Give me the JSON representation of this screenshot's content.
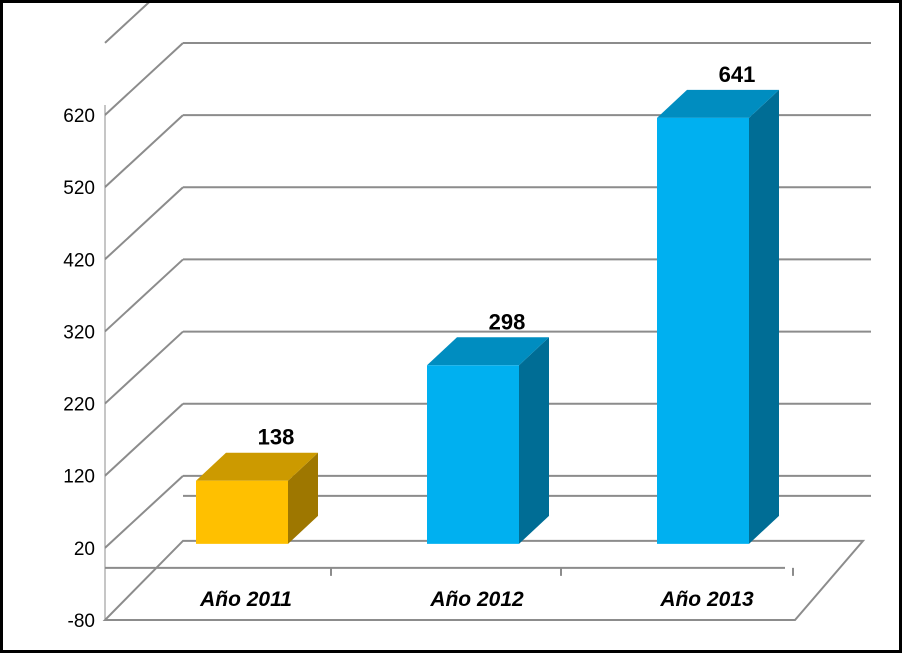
{
  "chart_data": {
    "type": "bar",
    "style": "3d-column",
    "categories": [
      "Año 2011",
      "Año 2012",
      "Año 2013"
    ],
    "values": [
      138,
      298,
      641
    ],
    "bar_colors": [
      "#FFC000",
      "#00B0F0",
      "#00B0F0"
    ],
    "ylim": [
      -80,
      620
    ],
    "yticks": [
      620,
      520,
      420,
      320,
      220,
      120,
      20,
      -80
    ],
    "title": "",
    "xlabel": "",
    "ylabel": "",
    "grid": true,
    "legend": "none"
  }
}
